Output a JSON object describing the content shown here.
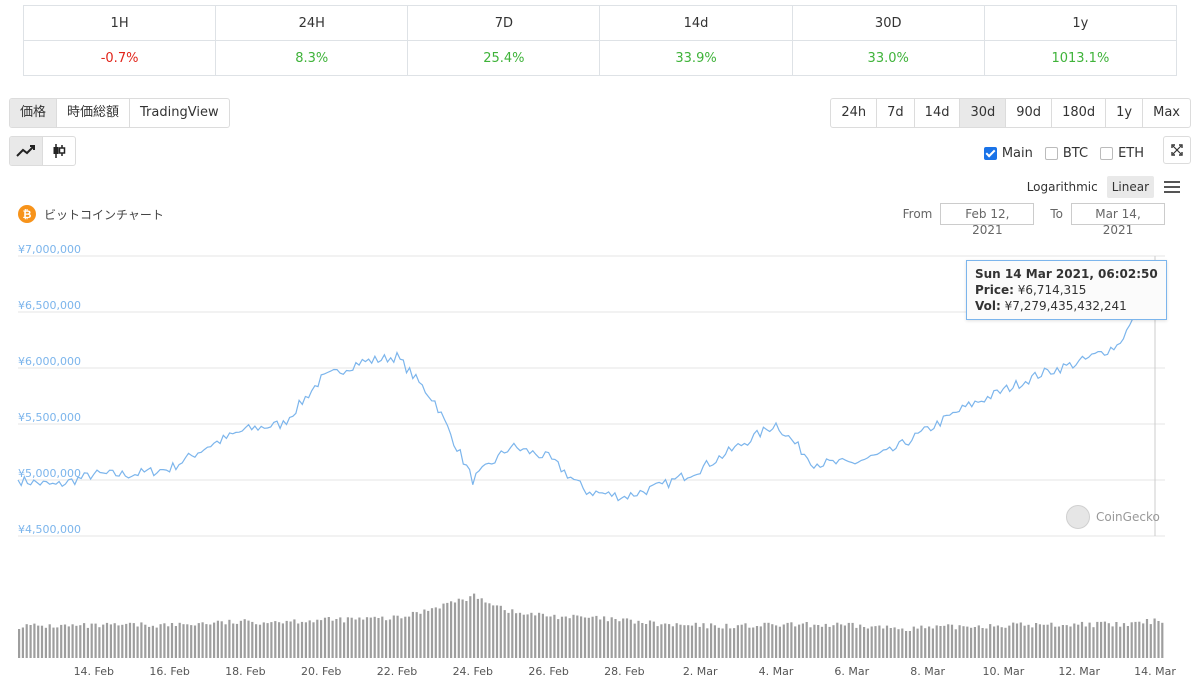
{
  "performance": {
    "headers": [
      "1H",
      "24H",
      "7D",
      "14d",
      "30D",
      "1y"
    ],
    "values": [
      "-0.7%",
      "8.3%",
      "25.4%",
      "33.9%",
      "33.0%",
      "1013.1%"
    ]
  },
  "chart_type_tabs": [
    "価格",
    "時価総額",
    "TradingView"
  ],
  "period_buttons": [
    "24h",
    "7d",
    "14d",
    "30d",
    "90d",
    "180d",
    "1y",
    "Max"
  ],
  "active_period": "30d",
  "series_toggles": {
    "main": "Main",
    "btc": "BTC",
    "eth": "ETH"
  },
  "scale": {
    "log": "Logarithmic",
    "linear": "Linear"
  },
  "chart_title": "ビットコインチャート",
  "date_range": {
    "from_label": "From",
    "from": "Feb 12, 2021",
    "to_label": "To",
    "to": "Mar 14, 2021"
  },
  "tooltip": {
    "title": "Sun 14 Mar 2021, 06:02:50",
    "price_label": "Price:",
    "price": "¥6,714,315",
    "vol_label": "Vol:",
    "vol": "¥7,279,435,432,241"
  },
  "watermark": "CoinGecko",
  "icons": {
    "line": "line-chart-icon",
    "candle": "candlestick-icon",
    "expand": "expand-icon",
    "menu": "hamburger-menu-icon",
    "btc": "bitcoin-logo-icon"
  },
  "colors": {
    "line": "#7cb5ec",
    "negative": "#e1251b",
    "positive": "#3fb33a",
    "volume": "#9e9e9e"
  },
  "chart_data": {
    "type": "line",
    "series": [
      {
        "name": "Price",
        "x": [
          "2021-02-12",
          "2021-02-13",
          "2021-02-14",
          "2021-02-15",
          "2021-02-16",
          "2021-02-17",
          "2021-02-18",
          "2021-02-19",
          "2021-02-20",
          "2021-02-21",
          "2021-02-22",
          "2021-02-23",
          "2021-02-24",
          "2021-02-25",
          "2021-02-26",
          "2021-02-27",
          "2021-02-28",
          "2021-03-01",
          "2021-03-02",
          "2021-03-03",
          "2021-03-04",
          "2021-03-05",
          "2021-03-06",
          "2021-03-07",
          "2021-03-08",
          "2021-03-09",
          "2021-03-10",
          "2021-03-11",
          "2021-03-12",
          "2021-03-13",
          "2021-03-14"
        ],
        "values": [
          5000000,
          4950000,
          5050000,
          5050000,
          5100000,
          5300000,
          5450000,
          5500000,
          5900000,
          6050000,
          6100000,
          5700000,
          5000000,
          5300000,
          5200000,
          4900000,
          4850000,
          4950000,
          5100000,
          5300000,
          5500000,
          5150000,
          5150000,
          5250000,
          5450000,
          5650000,
          5800000,
          5950000,
          6050000,
          6200000,
          6714315
        ]
      }
    ],
    "volume_shape": [
      0.32,
      0.32,
      0.32,
      0.33,
      0.33,
      0.35,
      0.36,
      0.37,
      0.38,
      0.39,
      0.4,
      0.52,
      0.62,
      0.45,
      0.42,
      0.4,
      0.37,
      0.33,
      0.32,
      0.32,
      0.33,
      0.33,
      0.32,
      0.3,
      0.3,
      0.32,
      0.33,
      0.33,
      0.34,
      0.33,
      0.38
    ],
    "x_ticks": [
      "14. Feb",
      "16. Feb",
      "18. Feb",
      "20. Feb",
      "22. Feb",
      "24. Feb",
      "26. Feb",
      "28. Feb",
      "2. Mar",
      "4. Mar",
      "6. Mar",
      "8. Mar",
      "10. Mar",
      "12. Mar",
      "14. Mar"
    ],
    "y_ticks": [
      "¥4,500,000",
      "¥5,000,000",
      "¥5,500,000",
      "¥6,000,000",
      "¥6,500,000",
      "¥7,000,000"
    ],
    "ylim": [
      4500000,
      7000000
    ],
    "grid": true
  }
}
